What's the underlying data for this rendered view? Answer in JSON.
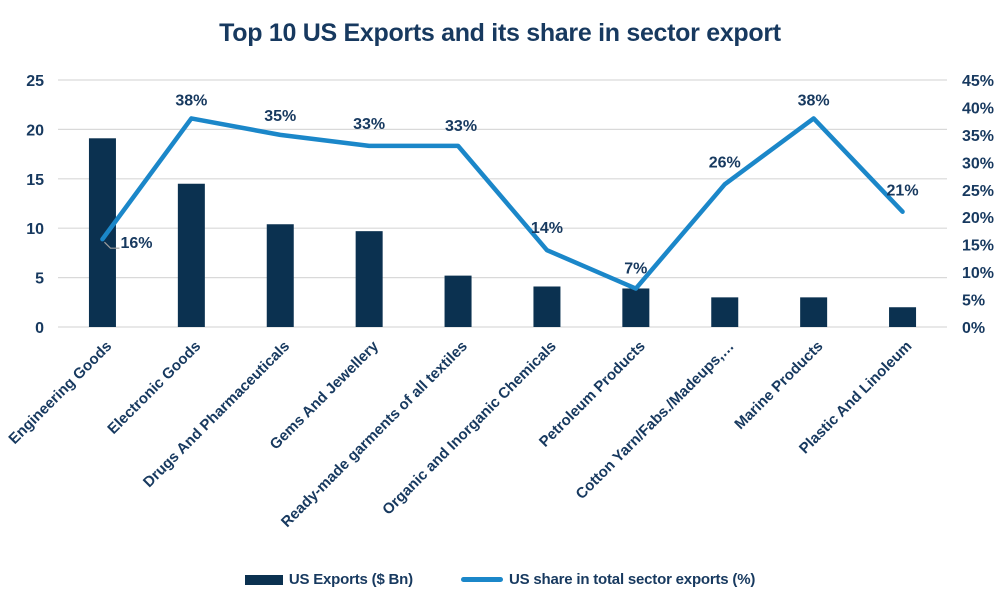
{
  "title": "Top 10 US Exports and its share in sector export",
  "chart_data": {
    "type": "bar",
    "secondary_type": "line",
    "title": "Top 10 US Exports and its share in sector export",
    "categories": [
      "Engineering Goods",
      "Electronic Goods",
      "Drugs And Pharmaceuticals",
      "Gems And Jewellery",
      "Ready-made garments of all textiles",
      "Organic and Inorganic Chemicals",
      "Petroleum Products",
      "Cotton Yarn/Fabs./Madeups,…",
      "Marine Products",
      "Plastic And Linoleum"
    ],
    "series": [
      {
        "name": "US Exports ($ Bn)",
        "type": "bar",
        "axis": "left",
        "values": [
          19.1,
          14.5,
          10.4,
          9.7,
          5.2,
          4.1,
          3.9,
          3.0,
          3.0,
          2.0
        ]
      },
      {
        "name": "US share in total sector exports (%)",
        "type": "line",
        "axis": "right",
        "values": [
          16,
          38,
          35,
          33,
          33,
          14,
          7,
          26,
          38,
          21
        ],
        "point_labels": [
          "16%",
          "38%",
          "35%",
          "33%",
          "33%",
          "14%",
          "7%",
          "26%",
          "38%",
          "21%"
        ]
      }
    ],
    "left_axis": {
      "min": 0,
      "max": 25,
      "ticks": [
        "0",
        "5",
        "10",
        "15",
        "20",
        "25"
      ]
    },
    "right_axis": {
      "min": 0,
      "max": 45,
      "ticks": [
        "0%",
        "5%",
        "10%",
        "15%",
        "20%",
        "25%",
        "30%",
        "35%",
        "40%",
        "45%"
      ]
    },
    "grid": "horizontal",
    "legend_position": "bottom",
    "colors": {
      "bar": "#0b3150",
      "line": "#1b87c9",
      "text": "#17395f",
      "grid": "#d9d9d9",
      "leader": "#9e9e9e"
    },
    "layout": {
      "label_dx": [
        18,
        0,
        0,
        0,
        3,
        0,
        0,
        0,
        0,
        0
      ],
      "label_dy": [
        9,
        -13,
        -14,
        -17,
        -15,
        -17,
        -15,
        -17,
        -13,
        -16
      ],
      "label_anchor": [
        "start",
        "middle",
        "middle",
        "middle",
        "middle",
        "middle",
        "middle",
        "middle",
        "middle",
        "middle"
      ]
    }
  },
  "legend": {
    "items": [
      {
        "label": "US Exports ($ Bn)"
      },
      {
        "label": "US share in total sector exports (%)"
      }
    ]
  }
}
